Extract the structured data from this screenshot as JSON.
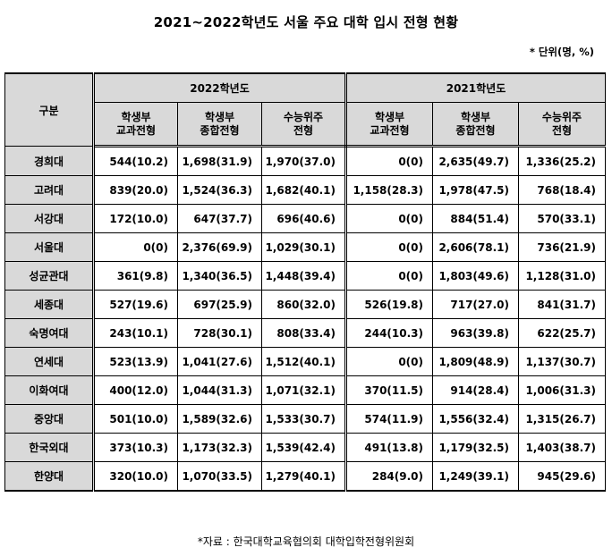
{
  "title": "2021~2022학년도 서울 주요 대학 입시 전형 현황",
  "unit": "* 단위(명, %)",
  "header": {
    "group_label": "구분",
    "year_2022": "2022학년도",
    "year_2021": "2021학년도",
    "col1_line1": "학생부",
    "col1_line2": "교과전형",
    "col2_line1": "학생부",
    "col2_line2": "종합전형",
    "col3_line1": "수능위주",
    "col3_line2": "전형"
  },
  "rows": [
    {
      "name": "경희대",
      "y2022": [
        "544(10.2)",
        "1,698(31.9)",
        "1,970(37.0)"
      ],
      "y2021": [
        "0(0)",
        "2,635(49.7)",
        "1,336(25.2)"
      ]
    },
    {
      "name": "고려대",
      "y2022": [
        "839(20.0)",
        "1,524(36.3)",
        "1,682(40.1)"
      ],
      "y2021": [
        "1,158(28.3)",
        "1,978(47.5)",
        "768(18.4)"
      ]
    },
    {
      "name": "서강대",
      "y2022": [
        "172(10.0)",
        "647(37.7)",
        "696(40.6)"
      ],
      "y2021": [
        "0(0)",
        "884(51.4)",
        "570(33.1)"
      ]
    },
    {
      "name": "서울대",
      "y2022": [
        "0(0)",
        "2,376(69.9)",
        "1,029(30.1)"
      ],
      "y2021": [
        "0(0)",
        "2,606(78.1)",
        "736(21.9)"
      ]
    },
    {
      "name": "성균관대",
      "y2022": [
        "361(9.8)",
        "1,340(36.5)",
        "1,448(39.4)"
      ],
      "y2021": [
        "0(0)",
        "1,803(49.6)",
        "1,128(31.0)"
      ]
    },
    {
      "name": "세종대",
      "y2022": [
        "527(19.6)",
        "697(25.9)",
        "860(32.0)"
      ],
      "y2021": [
        "526(19.8)",
        "717(27.0)",
        "841(31.7)"
      ]
    },
    {
      "name": "숙명여대",
      "y2022": [
        "243(10.1)",
        "728(30.1)",
        "808(33.4)"
      ],
      "y2021": [
        "244(10.3)",
        "963(39.8)",
        "622(25.7)"
      ]
    },
    {
      "name": "연세대",
      "y2022": [
        "523(13.9)",
        "1,041(27.6)",
        "1,512(40.1)"
      ],
      "y2021": [
        "0(0)",
        "1,809(48.9)",
        "1,137(30.7)"
      ]
    },
    {
      "name": "이화여대",
      "y2022": [
        "400(12.0)",
        "1,044(31.3)",
        "1,071(32.1)"
      ],
      "y2021": [
        "370(11.5)",
        "914(28.4)",
        "1,006(31.3)"
      ]
    },
    {
      "name": "중앙대",
      "y2022": [
        "501(10.0)",
        "1,589(32.6)",
        "1,533(30.7)"
      ],
      "y2021": [
        "574(11.9)",
        "1,556(32.4)",
        "1,315(26.7)"
      ]
    },
    {
      "name": "한국외대",
      "y2022": [
        "373(10.3)",
        "1,173(32.3)",
        "1,539(42.4)"
      ],
      "y2021": [
        "491(13.8)",
        "1,179(32.5)",
        "1,403(38.7)"
      ]
    },
    {
      "name": "한양대",
      "y2022": [
        "320(10.0)",
        "1,070(33.5)",
        "1,279(40.1)"
      ],
      "y2021": [
        "284(9.0)",
        "1,249(39.1)",
        "945(29.6)"
      ]
    }
  ],
  "source": "*자료 : 한국대학교육협의회 대학입학전형위원회"
}
